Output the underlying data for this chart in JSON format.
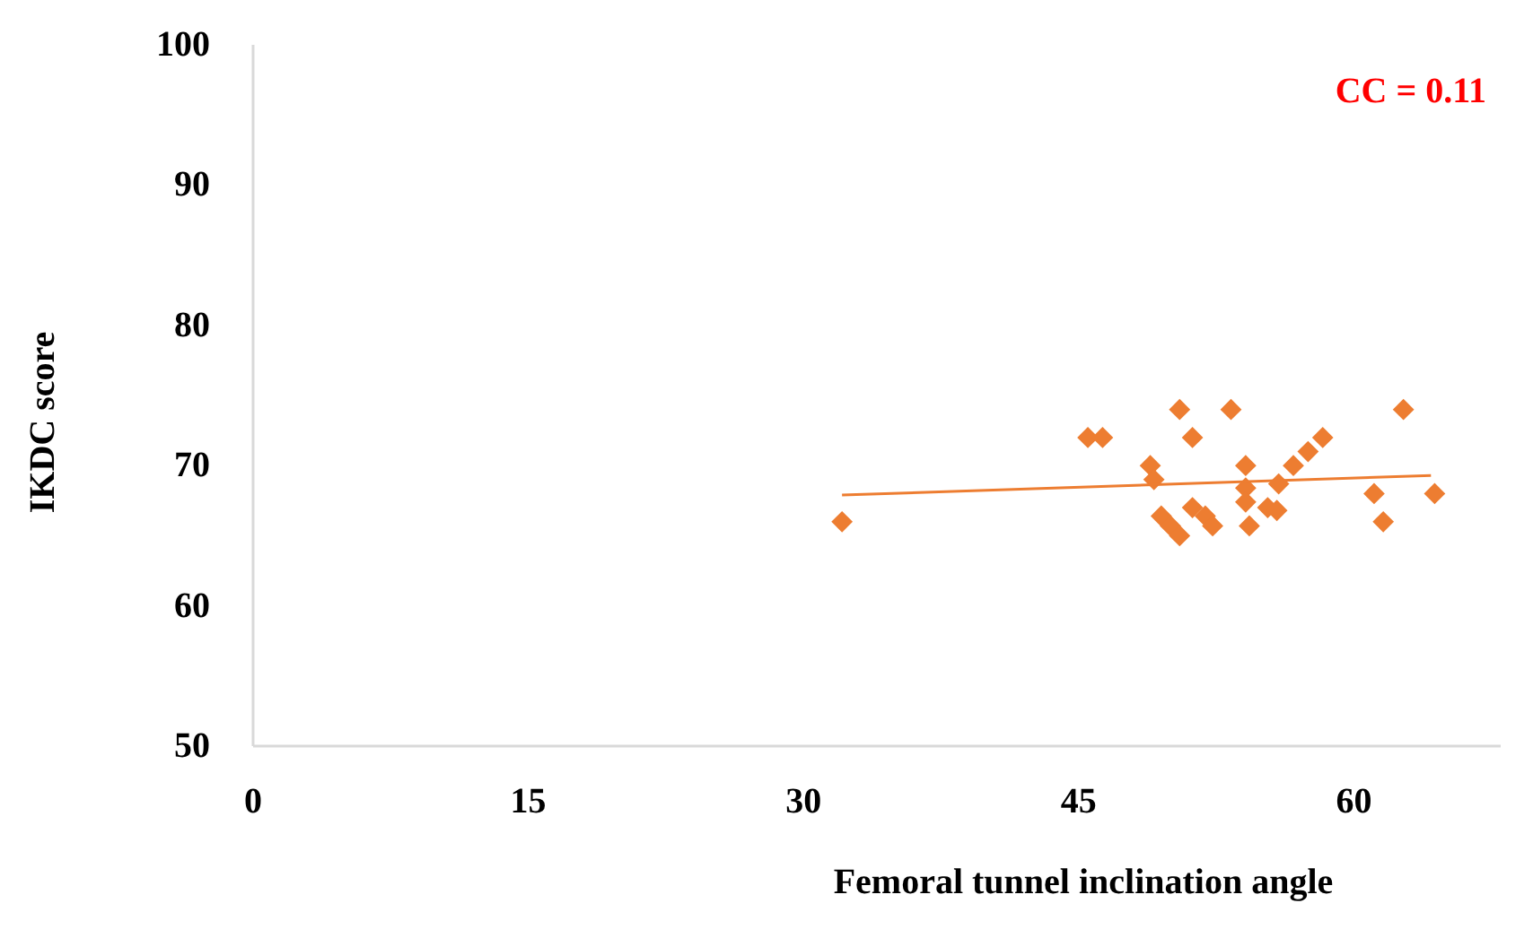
{
  "chart_data": {
    "type": "scatter",
    "xlabel": "Femoral tunnel inclination  angle",
    "ylabel": "IKDC score",
    "annotations": [
      "CC = 0.11"
    ],
    "xlim": [
      0,
      68
    ],
    "xticks": [
      0,
      15,
      30,
      45,
      60
    ],
    "ylim": [
      50,
      100
    ],
    "yticks": [
      50,
      60,
      70,
      80,
      90,
      100
    ],
    "grid": false,
    "series": [
      {
        "marker": "diamond",
        "color": "#ed7d31",
        "x": [
          32.1,
          45.5,
          46.3,
          50.5,
          53.3,
          62.7,
          51.2,
          48.9,
          49.1,
          49.5,
          50,
          50.5,
          51.2,
          51.9,
          52.3,
          54.1,
          54.1,
          54.1,
          54.3,
          55.3,
          55.8,
          55.9,
          56.7,
          57.5,
          58.3,
          61.1,
          61.6,
          64.4
        ],
        "values": [
          66,
          72,
          72,
          74,
          74,
          74,
          72,
          70,
          69,
          66.4,
          65.7,
          65,
          67,
          66.4,
          65.7,
          70,
          68.4,
          67.4,
          65.7,
          67,
          66.8,
          68.7,
          70,
          71,
          72,
          68,
          66,
          68
        ]
      },
      {
        "type": "line",
        "color": "#ed7d31",
        "x": [
          32.1,
          64.2
        ],
        "values": [
          67.9,
          69.3
        ]
      }
    ]
  }
}
